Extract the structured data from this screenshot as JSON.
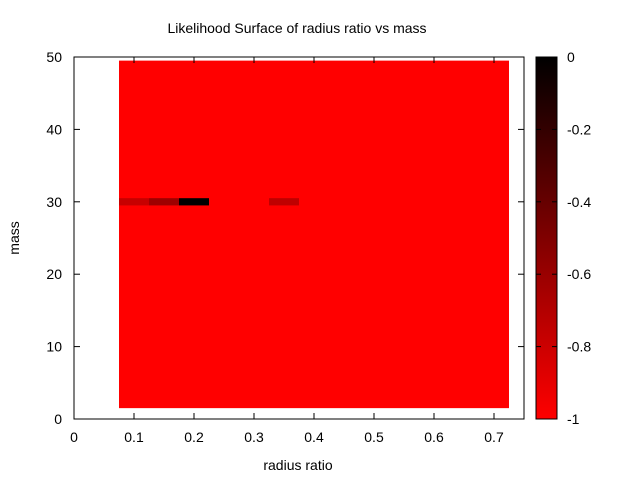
{
  "chart_data": {
    "type": "heatmap",
    "title": "Likelihood Surface of radius ratio vs mass",
    "xlabel": "radius ratio",
    "ylabel": "mass",
    "xlim": [
      0,
      0.75
    ],
    "ylim": [
      0,
      50
    ],
    "x_ticks": [
      "0",
      "0.1",
      "0.2",
      "0.3",
      "0.4",
      "0.5",
      "0.6",
      "0.7"
    ],
    "x_tick_values": [
      0,
      0.1,
      0.2,
      0.3,
      0.4,
      0.5,
      0.6,
      0.7
    ],
    "y_ticks": [
      "0",
      "10",
      "20",
      "30",
      "40",
      "50"
    ],
    "y_tick_values": [
      0,
      10,
      20,
      30,
      40,
      50
    ],
    "colorbar": {
      "range": [
        -1,
        0
      ],
      "ticks": [
        "0",
        "-0.2",
        "-0.4",
        "-0.6",
        "-0.8",
        "-1"
      ],
      "tick_values": [
        0,
        -0.2,
        -0.4,
        -0.6,
        -0.8,
        -1
      ],
      "colors": {
        "low": "#ff0000",
        "high": "#000000"
      }
    },
    "grid": false,
    "field": {
      "x_range": [
        0.075,
        0.725
      ],
      "y_range": [
        1.5,
        49.5
      ],
      "value": -1
    },
    "cells": [
      {
        "x0": 0.075,
        "x1": 0.125,
        "y0": 29.5,
        "y1": 30.5,
        "value": -0.78
      },
      {
        "x0": 0.125,
        "x1": 0.175,
        "y0": 29.5,
        "y1": 30.5,
        "value": -0.62
      },
      {
        "x0": 0.175,
        "x1": 0.225,
        "y0": 29.5,
        "y1": 30.5,
        "value": 0.0
      },
      {
        "x0": 0.325,
        "x1": 0.375,
        "y0": 29.5,
        "y1": 30.5,
        "value": -0.75
      }
    ]
  }
}
